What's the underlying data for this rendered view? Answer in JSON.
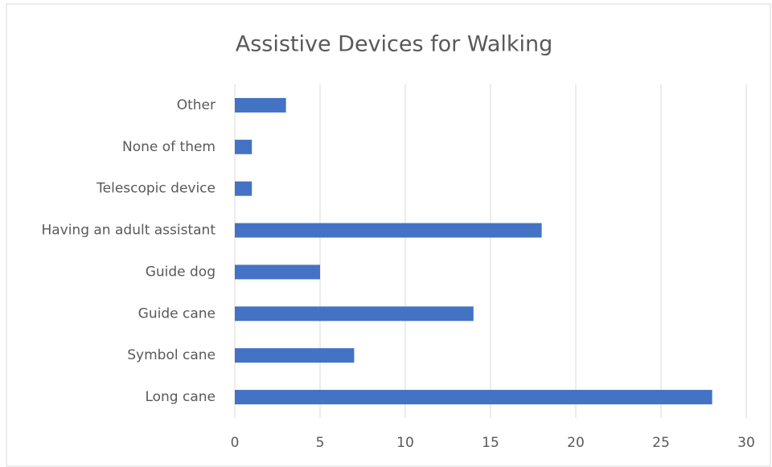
{
  "chart_data": {
    "type": "bar",
    "orientation": "horizontal",
    "title": "Assistive Devices for Walking",
    "categories": [
      "Long cane",
      "Symbol cane",
      "Guide cane",
      "Guide dog",
      "Having an adult assistant",
      "Telescopic device",
      "None of them",
      "Other"
    ],
    "values": [
      28,
      7,
      14,
      5,
      18,
      1,
      1,
      3
    ],
    "color": "#4472c4",
    "xlim": [
      0,
      30
    ],
    "xticks": [
      0,
      5,
      10,
      15,
      20,
      25,
      30
    ],
    "grid": true
  }
}
